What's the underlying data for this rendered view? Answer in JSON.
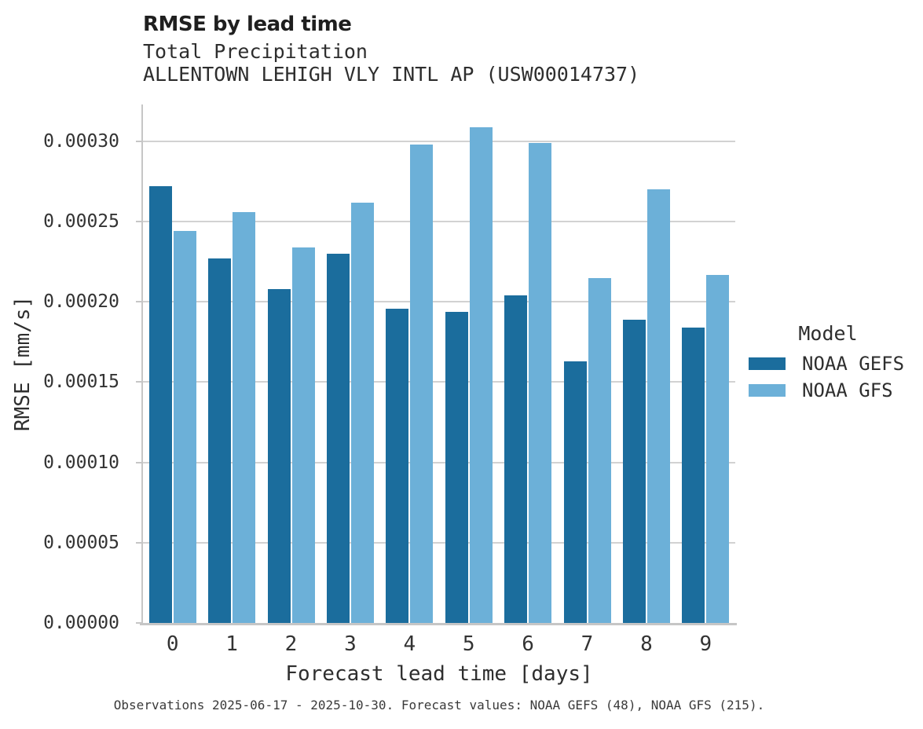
{
  "header": {
    "title": "RMSE by lead time",
    "subtitle_variable": "Total Precipitation",
    "subtitle_station": "ALLENTOWN LEHIGH VLY INTL AP (USW00014737)"
  },
  "legend": {
    "title": "Model"
  },
  "footer": {
    "caption": "Observations 2025-06-17 - 2025-10-30. Forecast values: NOAA GEFS (48), NOAA GFS (215)."
  },
  "colors": {
    "gefs_bar": "#1b6d9d",
    "gfs_bar": "#6cb0d8",
    "gridline": "#d2d2d2",
    "axis": "#c6c6c6"
  },
  "chart_data": {
    "type": "bar",
    "title": "RMSE by lead time",
    "subtitle": [
      "Total Precipitation",
      "ALLENTOWN LEHIGH VLY INTL AP (USW00014737)"
    ],
    "xlabel": "Forecast lead time [days]",
    "ylabel": "RMSE [mm/s]",
    "caption": "Observations 2025-06-17 - 2025-10-30. Forecast values: NOAA GEFS (48), NOAA GFS (215).",
    "categories": [
      "0",
      "1",
      "2",
      "3",
      "4",
      "5",
      "6",
      "7",
      "8",
      "9"
    ],
    "series": [
      {
        "name": "NOAA GEFS",
        "color": "#1b6d9d",
        "values": [
          0.000272,
          0.000227,
          0.000208,
          0.00023,
          0.000196,
          0.000194,
          0.000204,
          0.000163,
          0.000189,
          0.000184
        ]
      },
      {
        "name": "NOAA GFS",
        "color": "#6cb0d8",
        "values": [
          0.000244,
          0.000256,
          0.000234,
          0.000262,
          0.000298,
          0.000309,
          0.000299,
          0.000215,
          0.00027,
          0.000217
        ]
      }
    ],
    "ylim": [
      0,
      0.000323
    ],
    "yticks": {
      "values": [
        0,
        5e-05,
        0.0001,
        0.00015,
        0.0002,
        0.00025,
        0.0003
      ],
      "labels": [
        "0.00000",
        "0.00005",
        "0.00010",
        "0.00015",
        "0.00020",
        "0.00025",
        "0.00030"
      ]
    },
    "grid": "horizontal",
    "legend_title": "Model",
    "legend_position": "right"
  }
}
